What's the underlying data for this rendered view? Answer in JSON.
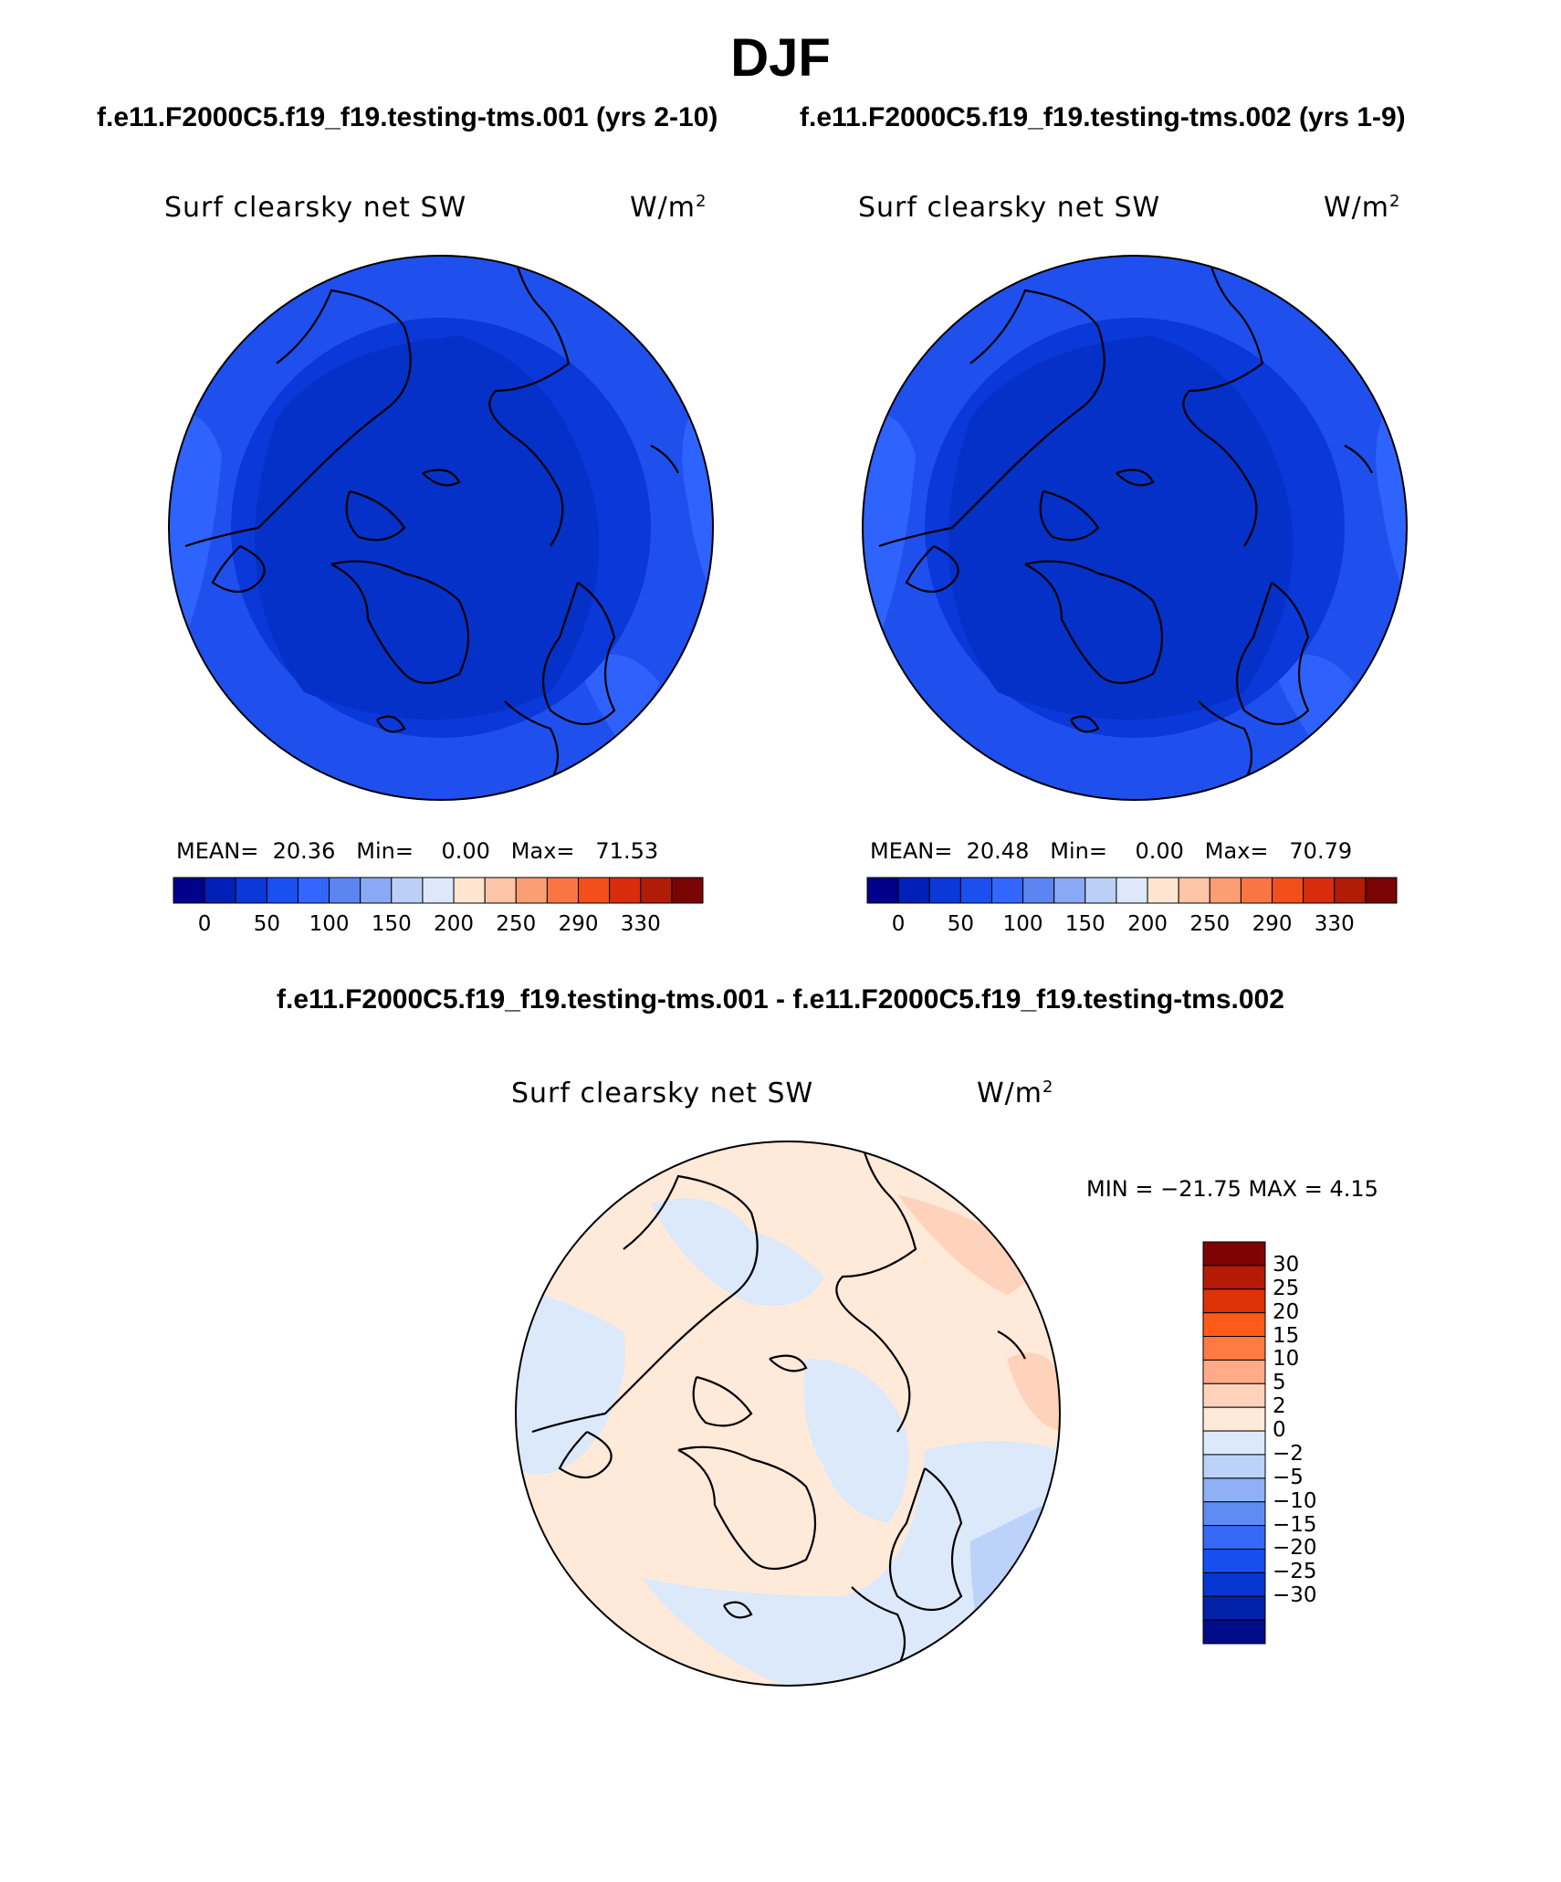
{
  "header": {
    "season": "DJF",
    "case1_title": "f.e11.F2000C5.f19_f19.testing-tms.001 (yrs 2-10)",
    "case2_title": "f.e11.F2000C5.f19_f19.testing-tms.002 (yrs 1-9)",
    "diff_title": "f.e11.F2000C5.f19_f19.testing-tms.001 - f.e11.F2000C5.f19_f19.testing-tms.002"
  },
  "panels": [
    {
      "variable": "Surf clearsky net SW",
      "units": "W/m",
      "units_sup": "2",
      "mean_label": "MEAN=",
      "mean": "20.36",
      "min_label": "Min=",
      "min": "0.00",
      "max_label": "Max=",
      "max": "71.53"
    },
    {
      "variable": "Surf clearsky net SW",
      "units": "W/m",
      "units_sup": "2",
      "mean_label": "MEAN=",
      "mean": "20.48",
      "min_label": "Min=",
      "min": "0.00",
      "max_label": "Max=",
      "max": "70.79"
    },
    {
      "variable": "Surf clearsky net SW",
      "units": "W/m",
      "units_sup": "2",
      "minmax_text": "MIN = −21.75 MAX =    4.15"
    }
  ],
  "colorbar_main": {
    "colors": [
      "#00008b",
      "#0020b8",
      "#0b38d8",
      "#1a4ff0",
      "#3366ff",
      "#5c85f2",
      "#8aa8f5",
      "#bcd0f7",
      "#dde9fb",
      "#ffe6d0",
      "#fdc4a8",
      "#fb9e74",
      "#f97644",
      "#f24f1d",
      "#d92c0d",
      "#b01c05",
      "#7a0303"
    ],
    "labels": [
      "0",
      "50",
      "100",
      "150",
      "200",
      "250",
      "290",
      "330"
    ]
  },
  "colorbar_diff": {
    "colors": [
      "#7e0404",
      "#b41a04",
      "#dd3205",
      "#ff5a17",
      "#ff7b43",
      "#ffab88",
      "#ffd2bb",
      "#ffe9d9",
      "#dbe9fb",
      "#bcd2f8",
      "#8fb0f4",
      "#5f8cf2",
      "#3569f5",
      "#164ef0",
      "#0737d2",
      "#0021a8",
      "#000d8a"
    ],
    "labels": [
      "30",
      "25",
      "20",
      "15",
      "10",
      "5",
      "2",
      "0",
      "−2",
      "−5",
      "−10",
      "−15",
      "−20",
      "−25",
      "−30"
    ]
  },
  "chart_data": [
    {
      "type": "map",
      "projection": "north polar stereographic",
      "title": "Surf clearsky net SW",
      "case": "f.e11.F2000C5.f19_f19.testing-tms.001 (yrs 2-10)",
      "units": "W/m2",
      "mean": 20.36,
      "min": 0.0,
      "max": 71.53,
      "contour_levels": [
        0,
        25,
        50,
        75,
        100,
        125,
        150,
        175,
        200,
        225,
        250,
        270,
        290,
        310,
        330
      ]
    },
    {
      "type": "map",
      "projection": "north polar stereographic",
      "title": "Surf clearsky net SW",
      "case": "f.e11.F2000C5.f19_f19.testing-tms.002 (yrs 1-9)",
      "units": "W/m2",
      "mean": 20.48,
      "min": 0.0,
      "max": 70.79,
      "contour_levels": [
        0,
        25,
        50,
        75,
        100,
        125,
        150,
        175,
        200,
        225,
        250,
        270,
        290,
        310,
        330
      ]
    },
    {
      "type": "map",
      "projection": "north polar stereographic",
      "title": "Surf clearsky net SW",
      "case": "f.e11.F2000C5.f19_f19.testing-tms.001 - f.e11.F2000C5.f19_f19.testing-tms.002",
      "units": "W/m2",
      "min": -21.75,
      "max": 4.15,
      "contour_levels": [
        -30,
        -25,
        -20,
        -15,
        -10,
        -5,
        -2,
        0,
        2,
        5,
        10,
        15,
        20,
        25,
        30
      ]
    }
  ]
}
